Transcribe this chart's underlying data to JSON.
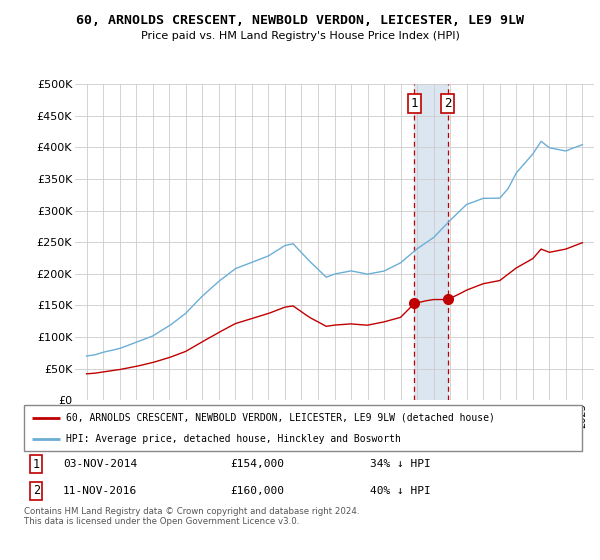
{
  "title": "60, ARNOLDS CRESCENT, NEWBOLD VERDON, LEICESTER, LE9 9LW",
  "subtitle": "Price paid vs. HM Land Registry's House Price Index (HPI)",
  "hpi_color": "#6baed6",
  "property_color": "#c00000",
  "sale1_year": 2014.84,
  "sale1_price": 154000,
  "sale1_date": "03-NOV-2014",
  "sale1_label": "34% ↓ HPI",
  "sale2_year": 2016.84,
  "sale2_price": 160000,
  "sale2_date": "11-NOV-2016",
  "sale2_label": "40% ↓ HPI",
  "legend_property": "60, ARNOLDS CRESCENT, NEWBOLD VERDON, LEICESTER, LE9 9LW (detached house)",
  "legend_hpi": "HPI: Average price, detached house, Hinckley and Bosworth",
  "footer": "Contains HM Land Registry data © Crown copyright and database right 2024.\nThis data is licensed under the Open Government Licence v3.0.",
  "ylim": [
    0,
    500000
  ],
  "yticks": [
    0,
    50000,
    100000,
    150000,
    200000,
    250000,
    300000,
    350000,
    400000,
    450000,
    500000
  ],
  "background_color": "#ffffff",
  "grid_color": "#cccccc",
  "highlight_fill": "#dce6f1",
  "hpi_key_years": [
    1995.0,
    1995.5,
    1996.0,
    1997.0,
    1998.0,
    1999.0,
    2000.0,
    2001.0,
    2002.0,
    2003.0,
    2004.0,
    2005.0,
    2006.0,
    2007.0,
    2007.5,
    2008.5,
    2009.5,
    2010.0,
    2011.0,
    2012.0,
    2013.0,
    2014.0,
    2015.0,
    2016.0,
    2017.0,
    2018.0,
    2019.0,
    2020.0,
    2020.5,
    2021.0,
    2022.0,
    2022.5,
    2023.0,
    2024.0,
    2025.0
  ],
  "hpi_key_vals": [
    70000,
    72000,
    76000,
    82000,
    92000,
    102000,
    118000,
    138000,
    165000,
    188000,
    208000,
    218000,
    228000,
    245000,
    248000,
    220000,
    195000,
    200000,
    205000,
    200000,
    205000,
    218000,
    240000,
    258000,
    285000,
    310000,
    320000,
    320000,
    335000,
    360000,
    390000,
    410000,
    400000,
    395000,
    405000
  ],
  "prop_key_years": [
    1995.0,
    1995.5,
    1996.0,
    1997.0,
    1998.0,
    1999.0,
    2000.0,
    2001.0,
    2002.0,
    2003.0,
    2004.0,
    2005.0,
    2006.0,
    2007.0,
    2007.5,
    2008.5,
    2009.5,
    2010.0,
    2011.0,
    2012.0,
    2013.0,
    2014.0,
    2014.84,
    2015.5,
    2016.0,
    2016.84,
    2017.5,
    2018.0,
    2019.0,
    2020.0,
    2021.0,
    2022.0,
    2022.5,
    2023.0,
    2024.0,
    2025.0
  ],
  "prop_key_vals": [
    42000,
    43000,
    45000,
    49000,
    54000,
    60000,
    68000,
    78000,
    93000,
    108000,
    122000,
    130000,
    138000,
    148000,
    150000,
    132000,
    118000,
    120000,
    122000,
    120000,
    125000,
    132000,
    154000,
    158000,
    160000,
    160000,
    168000,
    175000,
    185000,
    190000,
    210000,
    225000,
    240000,
    235000,
    240000,
    250000
  ]
}
